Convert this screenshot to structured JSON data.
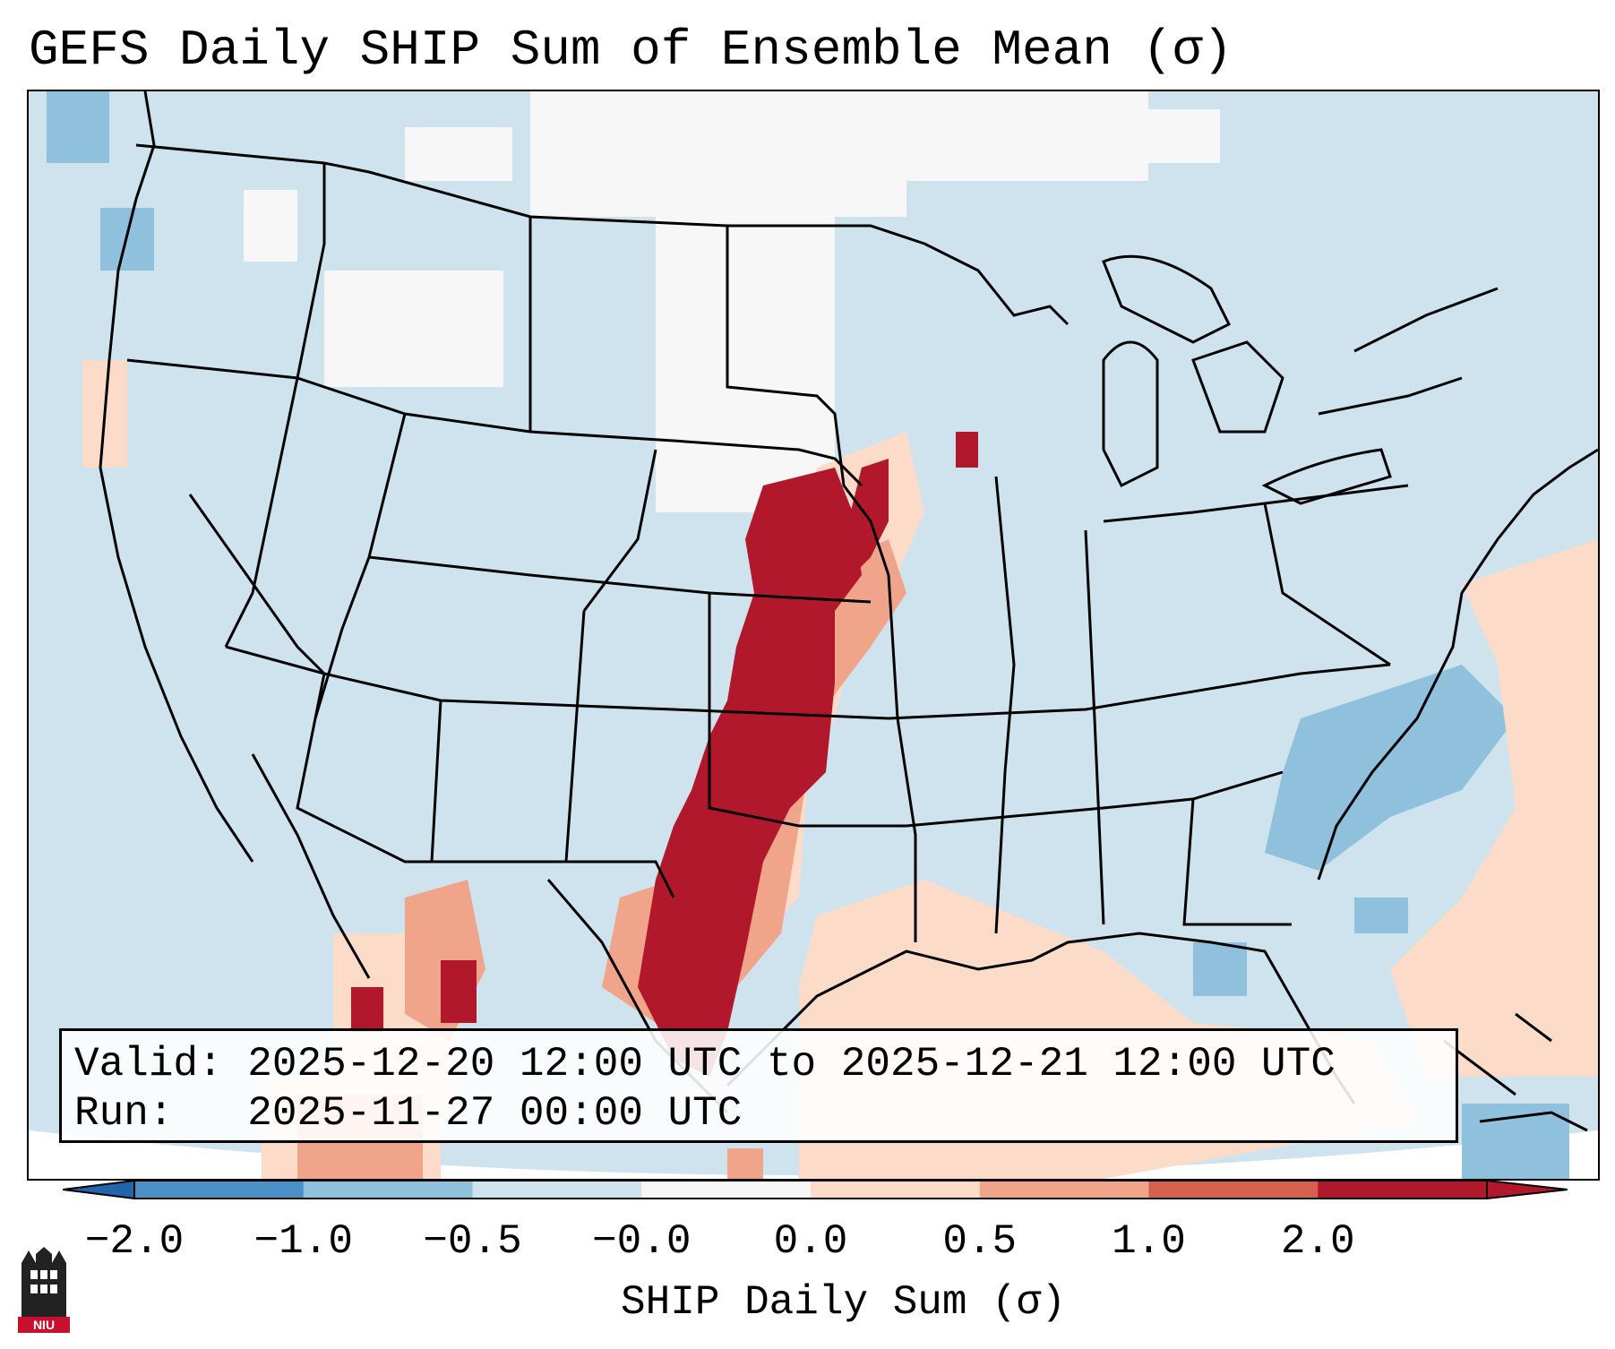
{
  "title": "GEFS Daily SHIP Sum of Ensemble Mean (σ)",
  "info": {
    "valid_label": "Valid:",
    "valid_value": "2025-12-20 12:00 UTC to 2025-12-21 12:00 UTC",
    "run_label": "Run:",
    "run_value": "2025-11-27 00:00 UTC"
  },
  "colorbar": {
    "label": "SHIP Daily Sum (σ)",
    "ticks": [
      "−2.0",
      "−1.0",
      "−0.5",
      "−0.0",
      "0.0",
      "0.5",
      "1.0",
      "2.0"
    ],
    "colors": [
      "#4a90c6",
      "#8fc1dd",
      "#cfe3ef",
      "#f7f7f7",
      "#fcdcc8",
      "#f0a48a",
      "#d6604d",
      "#b2182b"
    ],
    "under_color": "#2166ac",
    "over_color": "#b2182b"
  },
  "logo": {
    "icon": "niu-castle-logo",
    "text": "NIU",
    "color": "#c8102e"
  },
  "map": {
    "projection": "lambert-conformal",
    "region": "CONUS",
    "background_color": "#cfe3ef"
  }
}
